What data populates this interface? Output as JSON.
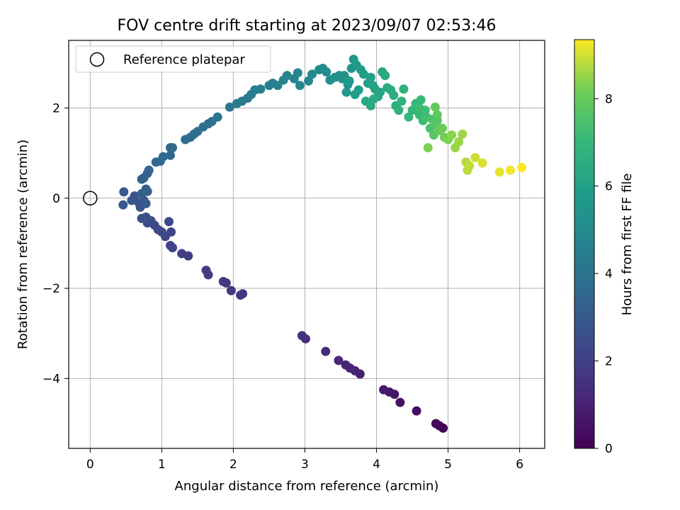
{
  "chart_data": {
    "type": "scatter",
    "title": "FOV centre drift starting at 2023/09/07 02:53:46",
    "xlabel": "Angular distance from reference (arcmin)",
    "ylabel": "Rotation from reference (arcmin)",
    "xlim": [
      -0.3,
      6.35
    ],
    "ylim": [
      -5.55,
      3.5
    ],
    "xticks": [
      0,
      1,
      2,
      3,
      4,
      5,
      6
    ],
    "xtick_labels": [
      "0",
      "1",
      "2",
      "3",
      "4",
      "5",
      "6"
    ],
    "yticks": [
      -4,
      -2,
      0,
      2
    ],
    "ytick_labels": [
      "−4",
      "−2",
      "0",
      "2"
    ],
    "grid": true,
    "legend": {
      "placement": "top-left",
      "entries": [
        "Reference platepar"
      ]
    },
    "colorbar": {
      "label": "Hours from first FF file",
      "range": [
        0,
        9.35
      ],
      "ticks": [
        0,
        2,
        4,
        6,
        8
      ],
      "tick_labels": [
        "0",
        "2",
        "4",
        "6",
        "8"
      ],
      "colormap": "viridis"
    },
    "reference": {
      "name": "Reference platepar",
      "x": 0,
      "y": 0
    },
    "points": [
      [
        4.93,
        -5.1,
        0.05
      ],
      [
        4.88,
        -5.05,
        0.15
      ],
      [
        4.83,
        -5.0,
        0.25
      ],
      [
        4.56,
        -4.72,
        0.35
      ],
      [
        4.33,
        -4.53,
        0.5
      ],
      [
        4.25,
        -4.35,
        0.6
      ],
      [
        4.18,
        -4.3,
        0.68
      ],
      [
        4.1,
        -4.25,
        0.75
      ],
      [
        3.77,
        -3.9,
        0.9
      ],
      [
        3.7,
        -3.83,
        1.0
      ],
      [
        3.63,
        -3.77,
        1.08
      ],
      [
        3.57,
        -3.7,
        1.15
      ],
      [
        3.47,
        -3.6,
        1.22
      ],
      [
        3.29,
        -3.4,
        1.3
      ],
      [
        3.01,
        -3.12,
        1.4
      ],
      [
        2.96,
        -3.05,
        1.45
      ],
      [
        2.13,
        -2.12,
        1.6
      ],
      [
        2.1,
        -2.15,
        1.65
      ],
      [
        1.97,
        -2.05,
        1.7
      ],
      [
        1.9,
        -1.88,
        1.75
      ],
      [
        1.86,
        -1.85,
        1.8
      ],
      [
        1.65,
        -1.7,
        1.85
      ],
      [
        1.62,
        -1.6,
        1.9
      ],
      [
        1.37,
        -1.28,
        1.95
      ],
      [
        1.28,
        -1.23,
        2.0
      ],
      [
        1.15,
        -1.1,
        2.05
      ],
      [
        1.12,
        -1.05,
        2.1
      ],
      [
        1.13,
        -0.75,
        2.15
      ],
      [
        1.1,
        -0.52,
        2.2
      ],
      [
        1.05,
        -0.85,
        2.25
      ],
      [
        1.0,
        -0.75,
        2.3
      ],
      [
        0.95,
        -0.7,
        2.35
      ],
      [
        0.9,
        -0.6,
        2.4
      ],
      [
        0.85,
        -0.5,
        2.45
      ],
      [
        0.8,
        -0.55,
        2.5
      ],
      [
        0.78,
        -0.42,
        2.55
      ],
      [
        0.72,
        -0.45,
        2.6
      ],
      [
        0.7,
        -0.2,
        2.65
      ],
      [
        0.75,
        -0.05,
        2.7
      ],
      [
        0.68,
        -0.1,
        2.75
      ],
      [
        0.62,
        0.05,
        2.8
      ],
      [
        0.58,
        -0.05,
        2.85
      ],
      [
        0.46,
        -0.15,
        2.9
      ],
      [
        0.47,
        0.14,
        2.95
      ],
      [
        0.78,
        -0.12,
        3.0
      ],
      [
        0.8,
        0.15,
        3.05
      ],
      [
        0.78,
        0.2,
        3.1
      ],
      [
        0.72,
        0.1,
        3.15
      ],
      [
        0.75,
        0.45,
        3.2
      ],
      [
        0.72,
        0.42,
        3.25
      ],
      [
        0.8,
        0.55,
        3.3
      ],
      [
        0.82,
        0.62,
        3.35
      ],
      [
        0.92,
        0.8,
        3.4
      ],
      [
        0.98,
        0.82,
        3.45
      ],
      [
        1.02,
        0.92,
        3.5
      ],
      [
        1.12,
        0.95,
        3.55
      ],
      [
        1.12,
        1.12,
        3.6
      ],
      [
        1.15,
        1.12,
        3.65
      ],
      [
        1.33,
        1.3,
        3.7
      ],
      [
        1.4,
        1.35,
        3.75
      ],
      [
        1.45,
        1.42,
        3.8
      ],
      [
        1.5,
        1.48,
        3.85
      ],
      [
        1.58,
        1.58,
        3.9
      ],
      [
        1.65,
        1.65,
        3.95
      ],
      [
        1.7,
        1.7,
        4.0
      ],
      [
        1.78,
        1.8,
        4.05
      ],
      [
        1.95,
        2.02,
        4.15
      ],
      [
        2.05,
        2.1,
        4.2
      ],
      [
        2.12,
        2.15,
        4.25
      ],
      [
        2.2,
        2.22,
        4.3
      ],
      [
        2.25,
        2.3,
        4.35
      ],
      [
        2.3,
        2.4,
        4.4
      ],
      [
        2.38,
        2.42,
        4.45
      ],
      [
        2.5,
        2.5,
        4.55
      ],
      [
        2.55,
        2.55,
        4.6
      ],
      [
        2.62,
        2.5,
        4.65
      ],
      [
        2.7,
        2.62,
        4.7
      ],
      [
        2.75,
        2.72,
        4.75
      ],
      [
        2.85,
        2.65,
        4.8
      ],
      [
        2.9,
        2.78,
        4.85
      ],
      [
        2.93,
        2.5,
        4.9
      ],
      [
        3.05,
        2.6,
        4.95
      ],
      [
        3.1,
        2.75,
        5.0
      ],
      [
        3.2,
        2.85,
        5.05
      ],
      [
        3.25,
        2.88,
        5.1
      ],
      [
        3.3,
        2.8,
        5.15
      ],
      [
        3.35,
        2.62,
        5.2
      ],
      [
        3.42,
        2.68,
        5.25
      ],
      [
        3.48,
        2.72,
        5.3
      ],
      [
        3.52,
        2.65,
        5.35
      ],
      [
        3.55,
        2.72,
        5.4
      ],
      [
        3.6,
        2.52,
        5.45
      ],
      [
        3.65,
        2.88,
        5.5
      ],
      [
        3.68,
        3.08,
        5.55
      ],
      [
        3.62,
        2.6,
        5.6
      ],
      [
        3.58,
        2.35,
        5.65
      ],
      [
        3.72,
        2.95,
        5.7
      ],
      [
        3.78,
        2.85,
        5.75
      ],
      [
        3.75,
        2.4,
        5.8
      ],
      [
        3.7,
        2.3,
        5.85
      ],
      [
        3.82,
        2.75,
        5.9
      ],
      [
        3.88,
        2.55,
        5.95
      ],
      [
        3.92,
        2.68,
        6.0
      ],
      [
        3.95,
        2.5,
        6.05
      ],
      [
        3.98,
        2.42,
        6.1
      ],
      [
        4.02,
        2.25,
        6.15
      ],
      [
        4.05,
        2.35,
        6.2
      ],
      [
        4.08,
        2.8,
        6.25
      ],
      [
        4.12,
        2.72,
        6.3
      ],
      [
        3.85,
        2.15,
        6.35
      ],
      [
        3.92,
        2.05,
        6.4
      ],
      [
        3.96,
        2.2,
        6.45
      ],
      [
        4.15,
        2.45,
        6.5
      ],
      [
        4.2,
        2.4,
        6.55
      ],
      [
        4.24,
        2.28,
        6.6
      ],
      [
        4.27,
        2.05,
        6.65
      ],
      [
        4.31,
        1.95,
        6.7
      ],
      [
        4.35,
        2.15,
        6.75
      ],
      [
        4.38,
        2.42,
        6.8
      ],
      [
        4.45,
        1.8,
        6.9
      ],
      [
        4.5,
        1.95,
        6.95
      ],
      [
        4.55,
        2.1,
        7.0
      ],
      [
        4.6,
        1.85,
        7.05
      ],
      [
        4.62,
        2.18,
        7.1
      ],
      [
        4.65,
        1.72,
        7.15
      ],
      [
        4.7,
        1.8,
        7.3
      ],
      [
        4.75,
        1.55,
        7.45
      ],
      [
        4.78,
        1.75,
        7.55
      ],
      [
        4.82,
        1.62,
        7.7
      ],
      [
        4.8,
        1.4,
        7.8
      ],
      [
        4.85,
        1.85,
        7.9
      ],
      [
        4.88,
        1.5,
        8.0
      ],
      [
        4.92,
        1.55,
        8.1
      ],
      [
        4.95,
        1.35,
        8.2
      ],
      [
        5.0,
        1.3,
        8.3
      ],
      [
        5.05,
        1.4,
        8.4
      ],
      [
        5.1,
        1.12,
        8.5
      ],
      [
        5.15,
        1.25,
        8.55
      ],
      [
        5.2,
        1.42,
        8.6
      ],
      [
        4.72,
        1.12,
        8.3
      ],
      [
        5.25,
        0.8,
        8.75
      ],
      [
        5.27,
        0.62,
        8.8
      ],
      [
        5.3,
        0.72,
        8.85
      ],
      [
        5.38,
        0.9,
        8.95
      ],
      [
        5.48,
        0.78,
        9.05
      ],
      [
        5.72,
        0.58,
        9.15
      ],
      [
        5.87,
        0.62,
        9.25
      ],
      [
        6.03,
        0.68,
        9.35
      ],
      [
        4.82,
        2.02,
        7.95
      ],
      [
        4.85,
        1.72,
        7.75
      ],
      [
        4.6,
        2.0,
        7.2
      ],
      [
        4.68,
        1.95,
        7.25
      ]
    ]
  }
}
